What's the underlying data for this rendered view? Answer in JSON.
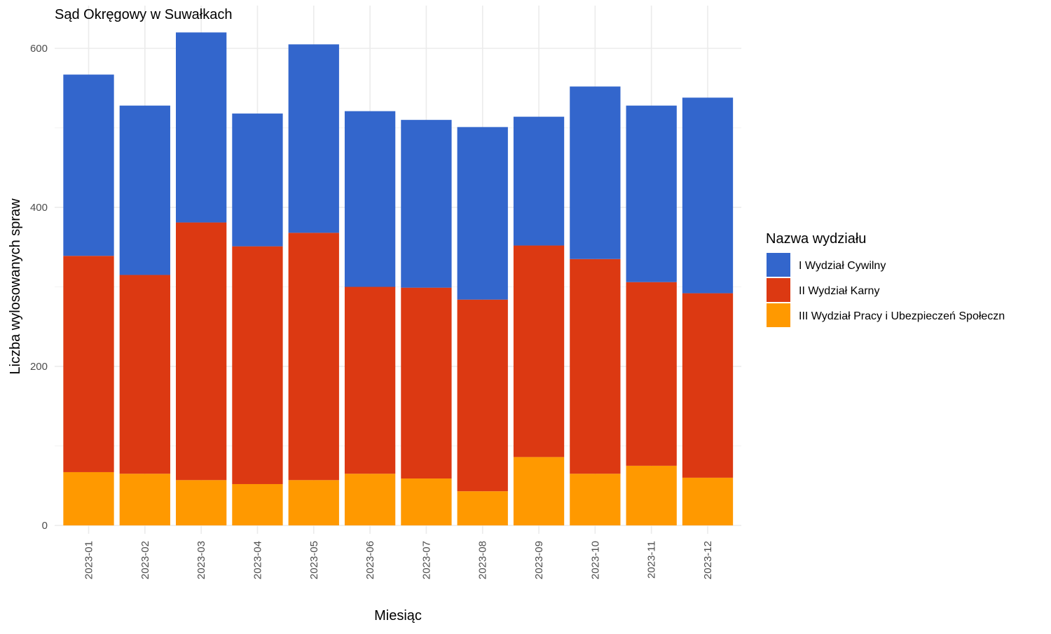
{
  "chart_data": {
    "type": "bar",
    "stacked": true,
    "title": "Sąd Okręgowy w Suwałkach",
    "xlabel": "Miesiąc",
    "ylabel": "Liczba wylosowanych spraw",
    "ylim": [
      0,
      630
    ],
    "yticks": [
      0,
      200,
      400,
      600
    ],
    "grid": true,
    "legend_position": "right",
    "legend_title": "Nazwa wydziału",
    "categories": [
      "2023-01",
      "2023-02",
      "2023-03",
      "2023-04",
      "2023-05",
      "2023-06",
      "2023-07",
      "2023-08",
      "2023-09",
      "2023-10",
      "2023-11",
      "2023-12"
    ],
    "series": [
      {
        "name": "III Wydział Pracy i Ubezpieczeń Społeczn",
        "color": "#FF9900",
        "values": [
          67,
          65,
          57,
          52,
          57,
          65,
          59,
          43,
          86,
          65,
          75,
          60
        ]
      },
      {
        "name": "II Wydział Karny",
        "color": "#DC3912",
        "values": [
          272,
          250,
          324,
          299,
          311,
          235,
          240,
          241,
          266,
          270,
          231,
          232
        ]
      },
      {
        "name": "I Wydział Cywilny",
        "color": "#3366CC",
        "values": [
          228,
          213,
          239,
          167,
          237,
          221,
          211,
          217,
          162,
          217,
          222,
          246
        ]
      }
    ],
    "legend_order": [
      "I Wydział Cywilny",
      "II Wydział Karny",
      "III Wydział Pracy i Ubezpieczeń Społeczn"
    ]
  }
}
